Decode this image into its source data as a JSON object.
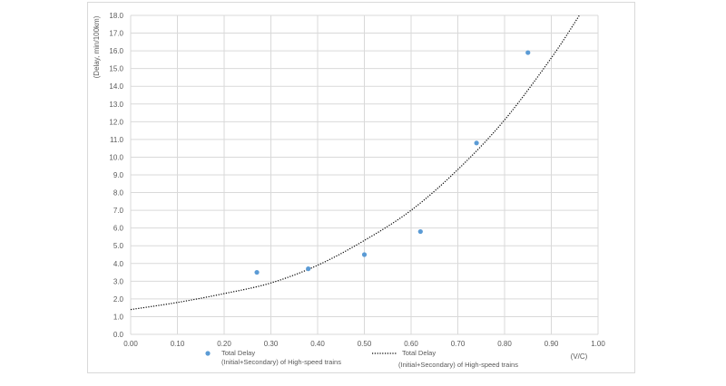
{
  "chart_data": {
    "type": "scatter",
    "xlabel": "(V/C)",
    "ylabel": "(Delay, min/100km)",
    "xlim": [
      0,
      1
    ],
    "ylim": [
      0,
      18
    ],
    "x_ticks": [
      "0.00",
      "0.10",
      "0.20",
      "0.30",
      "0.40",
      "0.50",
      "0.60",
      "0.70",
      "0.80",
      "0.90",
      "1.00"
    ],
    "y_ticks": [
      "0.0",
      "1.0",
      "2.0",
      "3.0",
      "4.0",
      "5.0",
      "6.0",
      "7.0",
      "8.0",
      "9.0",
      "10.0",
      "11.0",
      "12.0",
      "13.0",
      "14.0",
      "15.0",
      "16.0",
      "17.0",
      "18.0"
    ],
    "grid": true,
    "series": [
      {
        "kind": "points",
        "color": "#5b9bd5",
        "x": [
          0.27,
          0.38,
          0.5,
          0.62,
          0.74,
          0.85
        ],
        "y": [
          3.5,
          3.7,
          4.5,
          5.8,
          10.8,
          15.9
        ]
      },
      {
        "kind": "trendline",
        "style": "dotted",
        "color": "#000000",
        "x": [
          0.0,
          0.1,
          0.2,
          0.3,
          0.4,
          0.5,
          0.6,
          0.7,
          0.8,
          0.9,
          0.96
        ],
        "y": [
          1.4,
          1.8,
          2.3,
          2.9,
          3.9,
          5.3,
          7.0,
          9.3,
          12.1,
          15.6,
          18.0
        ]
      }
    ],
    "legend": {
      "position": "bottom",
      "entries": [
        {
          "line1": "Total Delay",
          "line2": "(Initial+Secondary) of High-speed trains",
          "marker": "dot"
        },
        {
          "line1": "Total Delay",
          "line2": "(Initial+Secondary) of High-speed trains",
          "marker": "dotted-line"
        }
      ]
    }
  }
}
